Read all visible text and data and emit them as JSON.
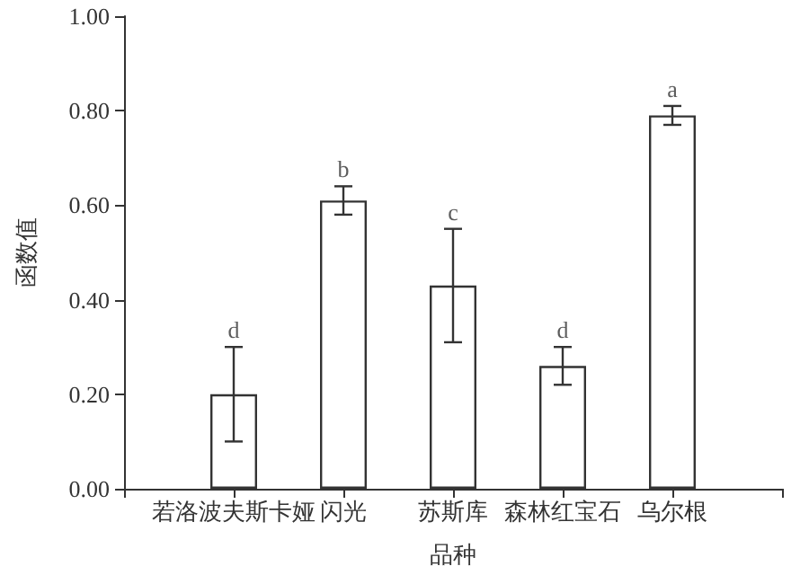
{
  "chart_data": {
    "type": "bar",
    "xlabel": "品种",
    "ylabel": "函数值",
    "categories": [
      null,
      "若洛波夫斯卡娅",
      "闪光",
      "苏斯库",
      "森林红宝石",
      "乌尔根",
      null
    ],
    "values": [
      null,
      0.2,
      0.61,
      0.43,
      0.26,
      0.79,
      null
    ],
    "errors": [
      null,
      0.1,
      0.03,
      0.12,
      0.04,
      0.02,
      null
    ],
    "color": "#ffffff",
    "ylim": [
      0,
      1
    ],
    "yticks": [
      {
        "value": 0,
        "label": "0.00"
      },
      {
        "value": 0.2,
        "label": "0.20"
      },
      {
        "value": 0.4,
        "label": "0.40"
      },
      {
        "value": 0.6,
        "label": "0.60"
      },
      {
        "value": 0.8,
        "label": "0.80"
      },
      {
        "value": 1,
        "label": "1.00"
      }
    ],
    "annotations": [
      {
        "text": "d",
        "x": "若洛波夫斯卡娅",
        "y": 0.3
      },
      {
        "text": "b",
        "x": "闪光",
        "y": 0.64
      },
      {
        "text": "c",
        "x": "苏斯库",
        "y": 0.55
      },
      {
        "text": "d",
        "x": "森林红宝石",
        "y": 0.3
      },
      {
        "text": "a",
        "x": "乌尔根",
        "y": 0.81
      }
    ],
    "grid": false
  }
}
